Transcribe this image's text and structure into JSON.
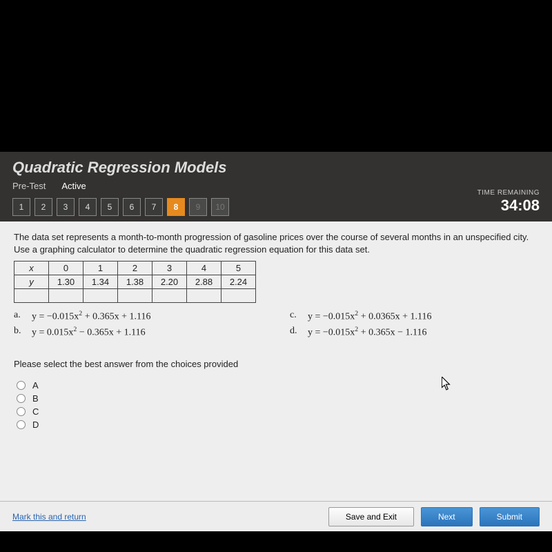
{
  "header": {
    "title": "Quadratic Regression Models",
    "pretest_label": "Pre-Test",
    "active_label": "Active",
    "timer_label": "TIME REMAINING",
    "timer_value": "34:08",
    "questions": [
      "1",
      "2",
      "3",
      "4",
      "5",
      "6",
      "7",
      "8",
      "9",
      "10"
    ],
    "current_index": 7,
    "disabled_after": 7
  },
  "question": {
    "text": "The data set represents a month-to-month progression of gasoline prices over the course of several months in an unspecified city. Use a graphing calculator to determine the quadratic regression equation for this data set.",
    "table": {
      "x_label": "x",
      "y_label": "y",
      "x": [
        "0",
        "1",
        "2",
        "3",
        "4",
        "5"
      ],
      "y": [
        "1.30",
        "1.34",
        "1.38",
        "2.20",
        "2.88",
        "2.24"
      ]
    },
    "choices": {
      "a": "y = −0.015x² + 0.365x + 1.116",
      "b": "y = 0.015x² − 0.365x + 1.116",
      "c": "y = −0.015x² + 0.0365x + 1.116",
      "d": "y = −0.015x² + 0.365x − 1.116"
    },
    "instruction": "Please select the best answer from the choices provided",
    "options": [
      "A",
      "B",
      "C",
      "D"
    ]
  },
  "footer": {
    "mark_link": "Mark this and return",
    "save_exit": "Save and Exit",
    "next": "Next",
    "submit": "Submit"
  },
  "colors": {
    "accent": "#e68a1f",
    "primary": "#2b74bb",
    "header_bg": "#333230",
    "content_bg": "#eeeeee"
  }
}
